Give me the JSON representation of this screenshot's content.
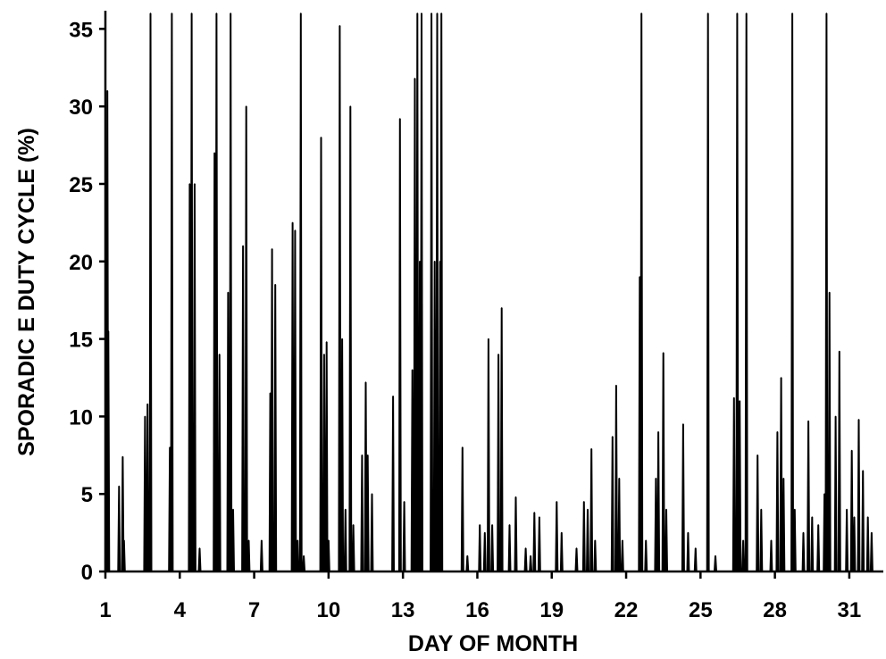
{
  "chart_data": {
    "type": "line",
    "title": "",
    "xlabel": "DAY OF MONTH",
    "ylabel": "SPORADIC E DUTY CYCLE (%)",
    "xlim": [
      1,
      32.3
    ],
    "ylim": [
      0,
      36
    ],
    "x_ticks": [
      1,
      4,
      7,
      10,
      13,
      16,
      19,
      22,
      25,
      28,
      31
    ],
    "y_ticks": [
      0,
      5,
      10,
      15,
      20,
      25,
      30,
      35
    ],
    "grid": false,
    "color": "#000000",
    "series": [
      {
        "name": "",
        "spikes": [
          [
            1.03,
            25
          ],
          [
            1.08,
            31
          ],
          [
            1.12,
            15.5
          ],
          [
            1.55,
            5.5
          ],
          [
            1.7,
            7.4
          ],
          [
            1.75,
            2
          ],
          [
            2.6,
            10
          ],
          [
            2.7,
            10.8
          ],
          [
            2.82,
            36
          ],
          [
            3.6,
            8
          ],
          [
            3.68,
            36
          ],
          [
            4.4,
            25
          ],
          [
            4.48,
            36
          ],
          [
            4.6,
            25
          ],
          [
            4.8,
            1.5
          ],
          [
            5.4,
            27
          ],
          [
            5.48,
            36
          ],
          [
            5.6,
            14
          ],
          [
            5.95,
            18
          ],
          [
            6.05,
            36
          ],
          [
            6.15,
            4
          ],
          [
            6.55,
            21
          ],
          [
            6.68,
            30
          ],
          [
            6.78,
            2
          ],
          [
            7.3,
            2
          ],
          [
            7.65,
            11.5
          ],
          [
            7.72,
            20.8
          ],
          [
            7.85,
            18.5
          ],
          [
            8.55,
            22.5
          ],
          [
            8.65,
            22
          ],
          [
            8.75,
            2
          ],
          [
            8.88,
            36
          ],
          [
            9.0,
            1
          ],
          [
            9.7,
            28
          ],
          [
            9.82,
            14
          ],
          [
            9.92,
            14.8
          ],
          [
            10.0,
            2
          ],
          [
            10.45,
            35.2
          ],
          [
            10.55,
            15
          ],
          [
            10.68,
            4
          ],
          [
            10.88,
            30
          ],
          [
            11.0,
            3
          ],
          [
            11.35,
            7.5
          ],
          [
            11.5,
            12.2
          ],
          [
            11.58,
            7.5
          ],
          [
            11.75,
            5
          ],
          [
            12.6,
            11.3
          ],
          [
            12.88,
            29.2
          ],
          [
            13.05,
            4.5
          ],
          [
            13.38,
            13
          ],
          [
            13.48,
            31.8
          ],
          [
            13.58,
            36
          ],
          [
            13.68,
            20
          ],
          [
            13.75,
            36
          ],
          [
            14.15,
            36
          ],
          [
            14.28,
            20
          ],
          [
            14.38,
            36
          ],
          [
            14.5,
            20
          ],
          [
            14.55,
            36
          ],
          [
            15.4,
            8
          ],
          [
            15.6,
            1
          ],
          [
            16.1,
            3
          ],
          [
            16.3,
            2.5
          ],
          [
            16.45,
            15
          ],
          [
            16.6,
            3
          ],
          [
            16.85,
            14
          ],
          [
            16.98,
            17
          ],
          [
            17.3,
            3
          ],
          [
            17.55,
            4.8
          ],
          [
            17.95,
            1.5
          ],
          [
            18.15,
            1
          ],
          [
            18.3,
            3.8
          ],
          [
            18.5,
            3.5
          ],
          [
            19.2,
            4.5
          ],
          [
            19.4,
            2.5
          ],
          [
            20.0,
            1.5
          ],
          [
            20.3,
            4.5
          ],
          [
            20.45,
            4
          ],
          [
            20.6,
            7.9
          ],
          [
            20.75,
            2
          ],
          [
            21.45,
            8.7
          ],
          [
            21.6,
            12
          ],
          [
            21.72,
            6
          ],
          [
            21.85,
            2
          ],
          [
            22.55,
            19
          ],
          [
            22.62,
            36
          ],
          [
            22.8,
            2
          ],
          [
            23.2,
            6
          ],
          [
            23.3,
            9
          ],
          [
            23.5,
            14.1
          ],
          [
            23.62,
            4
          ],
          [
            24.3,
            9.5
          ],
          [
            24.5,
            2.5
          ],
          [
            24.8,
            1.5
          ],
          [
            25.3,
            36
          ],
          [
            25.6,
            1
          ],
          [
            26.35,
            11.2
          ],
          [
            26.48,
            36
          ],
          [
            26.58,
            11
          ],
          [
            26.72,
            2
          ],
          [
            26.85,
            36
          ],
          [
            27.3,
            7.5
          ],
          [
            27.45,
            4
          ],
          [
            27.85,
            2
          ],
          [
            28.1,
            9
          ],
          [
            28.25,
            12.5
          ],
          [
            28.35,
            6
          ],
          [
            28.7,
            36
          ],
          [
            28.8,
            4
          ],
          [
            29.15,
            2.5
          ],
          [
            29.35,
            9.7
          ],
          [
            29.5,
            3.5
          ],
          [
            29.75,
            3
          ],
          [
            30.0,
            5
          ],
          [
            30.08,
            36
          ],
          [
            30.2,
            18
          ],
          [
            30.45,
            10
          ],
          [
            30.6,
            14.2
          ],
          [
            30.9,
            4
          ],
          [
            31.1,
            7.8
          ],
          [
            31.2,
            3.5
          ],
          [
            31.38,
            9.8
          ],
          [
            31.55,
            6.5
          ],
          [
            31.75,
            3.5
          ],
          [
            31.9,
            2.5
          ]
        ]
      }
    ]
  }
}
